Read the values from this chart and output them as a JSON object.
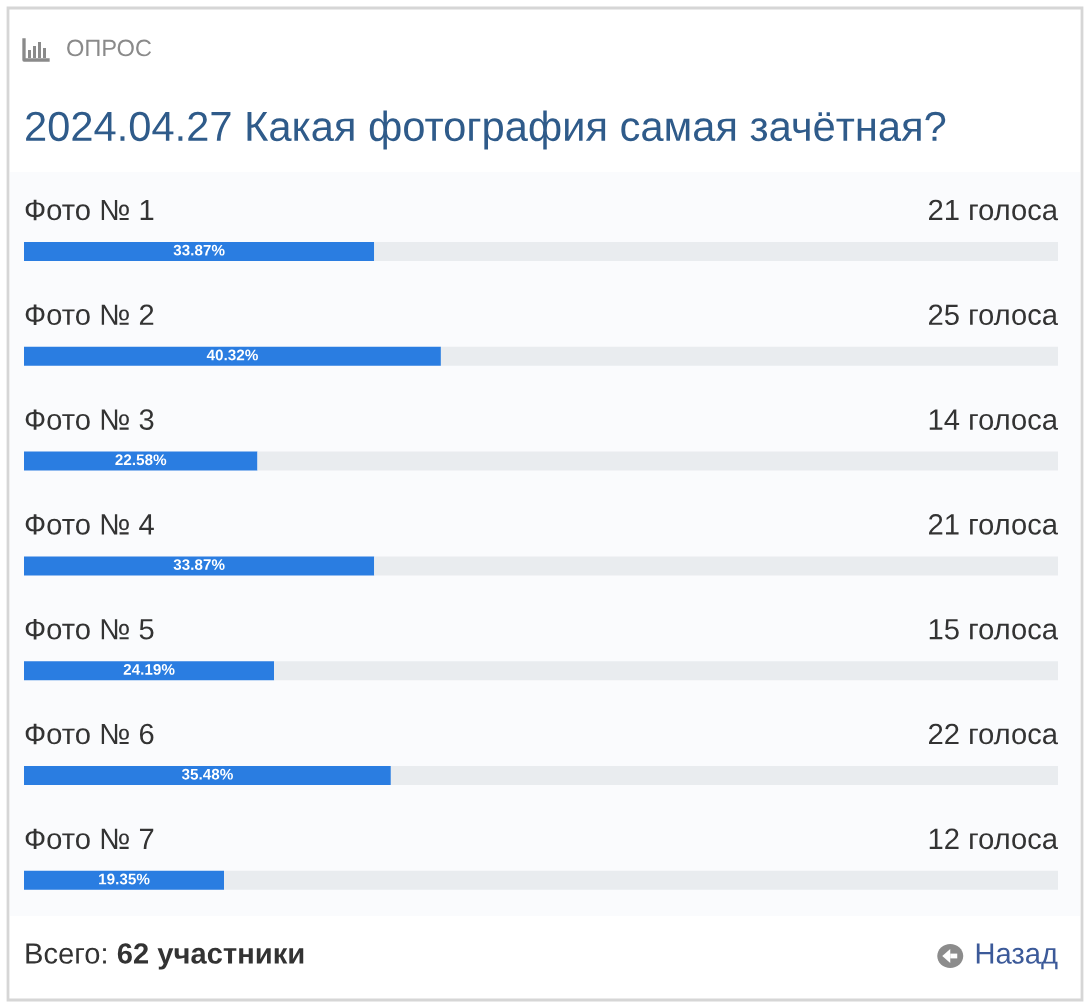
{
  "chart_data": {
    "type": "bar",
    "orientation": "horizontal",
    "stacked": true,
    "title": "2024.04.27 Какая фотография самая зачётная?",
    "categories": [
      "Фото № 1",
      "Фото № 2",
      "Фото № 3",
      "Фото № 4",
      "Фото № 5",
      "Фото № 6",
      "Фото № 7"
    ],
    "xlim": [
      0,
      100
    ],
    "tick_labels": false,
    "series": [
      {
        "color": "#2a7de1",
        "values": [
          33.87,
          40.32,
          22.58,
          33.87,
          24.19,
          35.48,
          19.35
        ],
        "value_labels": [
          "33.87%",
          "40.32%",
          "22.58%",
          "33.87%",
          "24.19%",
          "35.48%",
          "19.35%"
        ]
      },
      {
        "color": "#e9ecef",
        "values": [
          66.13,
          59.68,
          77.42,
          66.13,
          75.81,
          64.52,
          80.65
        ]
      }
    ],
    "annotations": [
      "ОПРОС",
      {
        "text": "21 голоса",
        "y": "Фото № 1"
      },
      {
        "text": "25 голоса",
        "y": "Фото № 2"
      },
      {
        "text": "14 голоса",
        "y": "Фото № 3"
      },
      {
        "text": "21 голоса",
        "y": "Фото № 4"
      },
      {
        "text": "15 голоса",
        "y": "Фото № 5"
      },
      {
        "text": "22 голоса",
        "y": "Фото № 6"
      },
      {
        "text": "12 голоса",
        "y": "Фото № 7"
      },
      "Всего:",
      "62 участники",
      "Назад"
    ]
  }
}
